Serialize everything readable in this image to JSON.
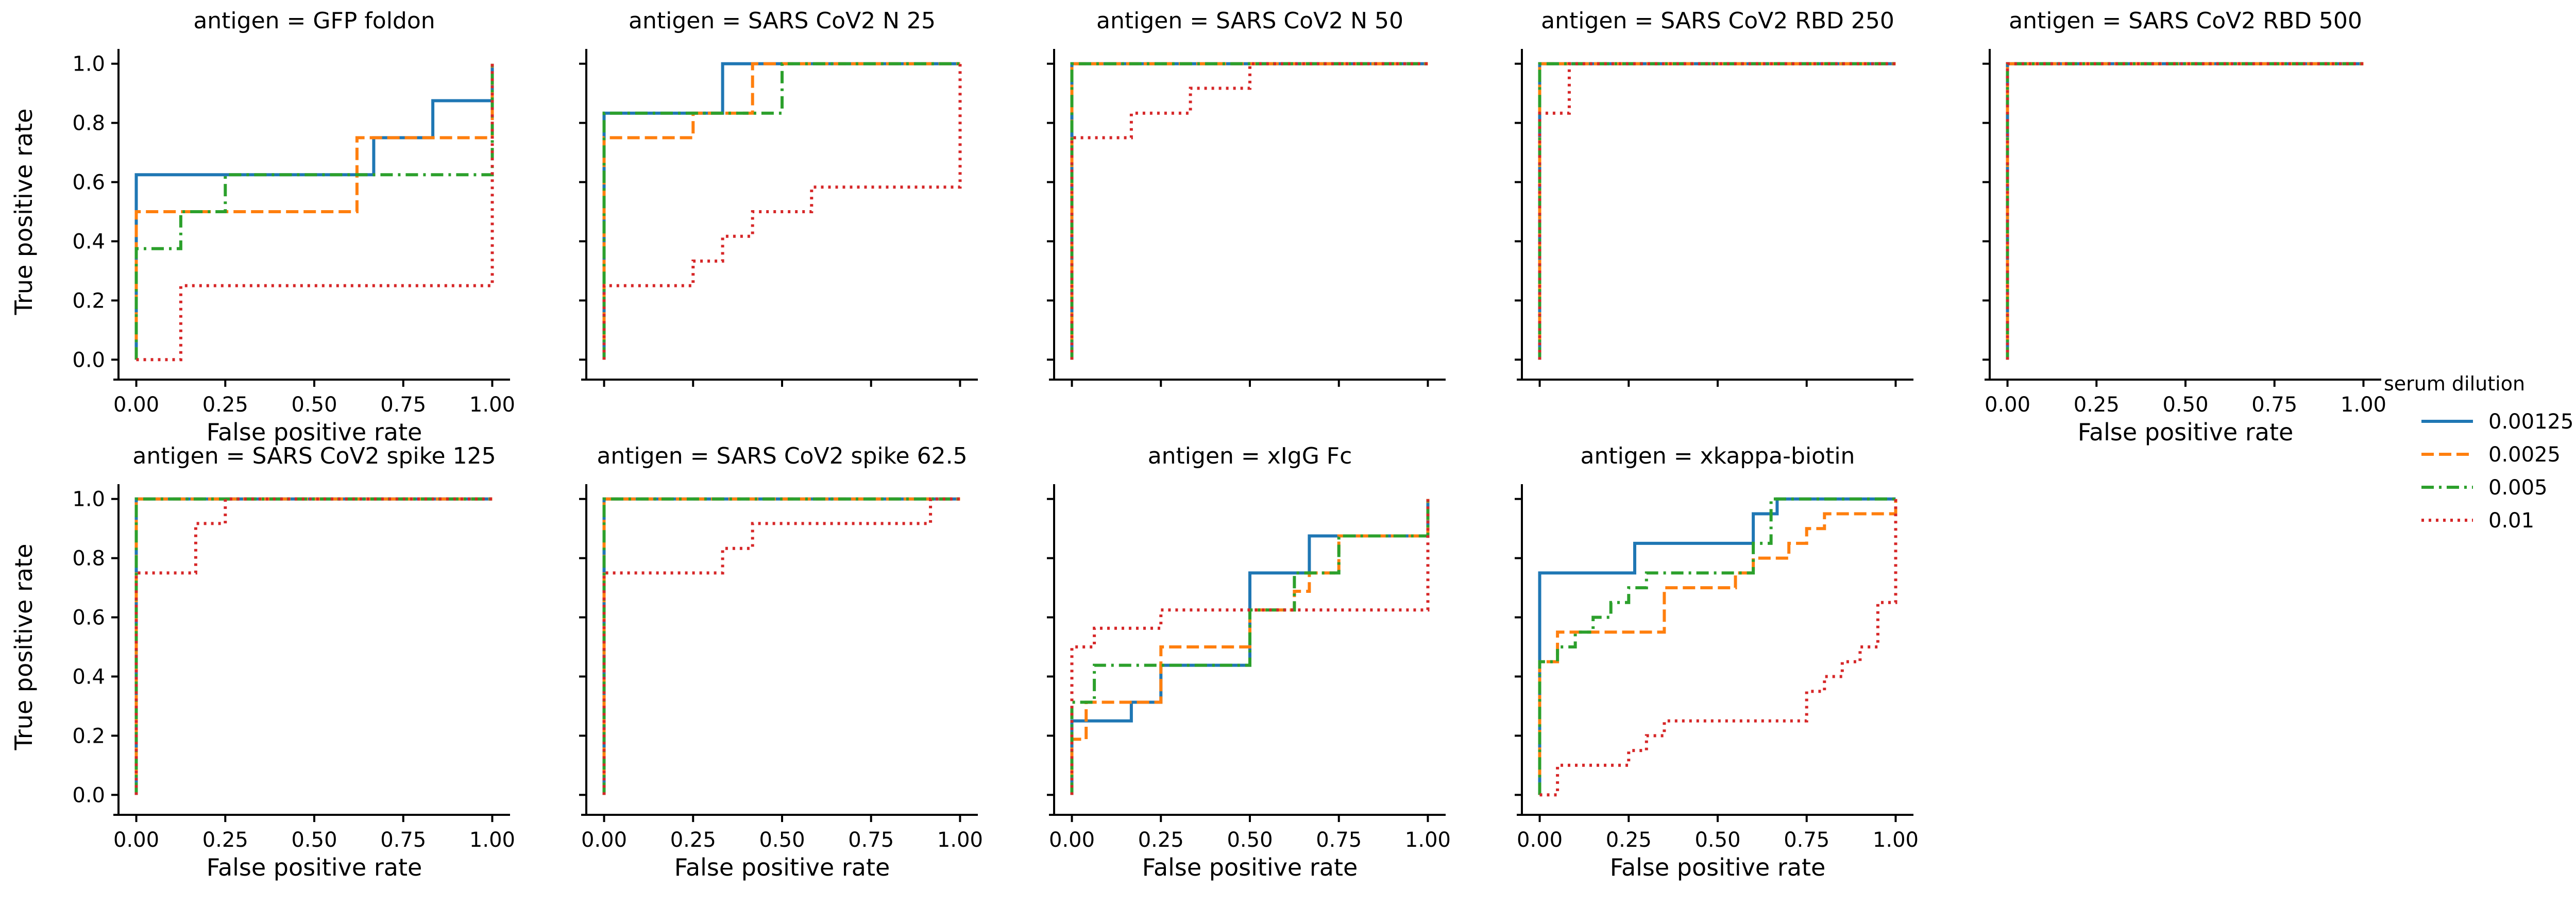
{
  "chart_data": {
    "type": "line",
    "xlabel": "False positive rate",
    "ylabel": "True positive rate",
    "xlim": [
      -0.05,
      1.05
    ],
    "ylim": [
      -0.05,
      1.05
    ],
    "xticks": [
      "0.00",
      "0.25",
      "0.50",
      "0.75",
      "1.00"
    ],
    "yticks": [
      "0.0",
      "0.2",
      "0.4",
      "0.6",
      "0.8",
      "1.0"
    ],
    "grid": false,
    "legend": {
      "title": "serum dilution",
      "placement": "right",
      "entries": [
        {
          "name": "0.00125",
          "color": "#1f77b4",
          "dash": "solid"
        },
        {
          "name": "0.0025",
          "color": "#ff7f0e",
          "dash": "dashed"
        },
        {
          "name": "0.005",
          "color": "#2ca02c",
          "dash": "dashdot"
        },
        {
          "name": "0.01",
          "color": "#d62728",
          "dash": "dotted"
        }
      ]
    },
    "panels": [
      {
        "title": "antigen = GFP foldon",
        "series": [
          {
            "name": "0.00125",
            "x": [
              0,
              0,
              0.667,
              0.667,
              0.833,
              0.833,
              1,
              1
            ],
            "y": [
              0,
              0.625,
              0.625,
              0.75,
              0.75,
              0.875,
              0.875,
              1
            ]
          },
          {
            "name": "0.0025",
            "x": [
              0,
              0,
              0.62,
              0.62,
              1,
              1
            ],
            "y": [
              0,
              0.5,
              0.5,
              0.75,
              0.75,
              1
            ]
          },
          {
            "name": "0.005",
            "x": [
              0,
              0,
              0.125,
              0.125,
              0.25,
              0.25,
              1,
              1
            ],
            "y": [
              0,
              0.375,
              0.375,
              0.5,
              0.5,
              0.625,
              0.625,
              1
            ]
          },
          {
            "name": "0.01",
            "x": [
              0,
              0,
              0.125,
              0.125,
              1,
              1
            ],
            "y": [
              0,
              0,
              0,
              0.25,
              0.25,
              1
            ]
          }
        ]
      },
      {
        "title": "antigen = SARS CoV2 N 25",
        "series": [
          {
            "name": "0.00125",
            "x": [
              0,
              0,
              0.333,
              0.333,
              1
            ],
            "y": [
              0,
              0.833,
              0.833,
              1,
              1
            ]
          },
          {
            "name": "0.0025",
            "x": [
              0,
              0,
              0.25,
              0.25,
              0.417,
              0.417,
              1
            ],
            "y": [
              0,
              0.75,
              0.75,
              0.833,
              0.833,
              1,
              1
            ]
          },
          {
            "name": "0.005",
            "x": [
              0,
              0,
              0.5,
              0.5,
              1
            ],
            "y": [
              0,
              0.833,
              0.833,
              1,
              1
            ]
          },
          {
            "name": "0.01",
            "x": [
              0,
              0,
              0.25,
              0.25,
              0.333,
              0.333,
              0.417,
              0.417,
              0.583,
              0.583,
              1,
              1
            ],
            "y": [
              0,
              0.25,
              0.25,
              0.333,
              0.333,
              0.417,
              0.417,
              0.5,
              0.5,
              0.583,
              0.583,
              1
            ]
          }
        ]
      },
      {
        "title": "antigen = SARS CoV2 N 50",
        "series": [
          {
            "name": "0.00125",
            "x": [
              0,
              0,
              1
            ],
            "y": [
              0,
              1,
              1
            ]
          },
          {
            "name": "0.0025",
            "x": [
              0,
              0,
              1
            ],
            "y": [
              0,
              1,
              1
            ]
          },
          {
            "name": "0.005",
            "x": [
              0,
              0,
              1
            ],
            "y": [
              0,
              1,
              1
            ]
          },
          {
            "name": "0.01",
            "x": [
              0,
              0,
              0.167,
              0.167,
              0.333,
              0.333,
              0.5,
              0.5,
              1
            ],
            "y": [
              0,
              0.75,
              0.75,
              0.833,
              0.833,
              0.917,
              0.917,
              1,
              1
            ]
          }
        ]
      },
      {
        "title": "antigen = SARS CoV2 RBD 250",
        "series": [
          {
            "name": "0.00125",
            "x": [
              0,
              0,
              1
            ],
            "y": [
              0,
              1,
              1
            ]
          },
          {
            "name": "0.0025",
            "x": [
              0,
              0,
              1
            ],
            "y": [
              0,
              1,
              1
            ]
          },
          {
            "name": "0.005",
            "x": [
              0,
              0,
              1
            ],
            "y": [
              0,
              1,
              1
            ]
          },
          {
            "name": "0.01",
            "x": [
              0,
              0,
              0.083,
              0.083,
              1
            ],
            "y": [
              0,
              0.833,
              0.833,
              1,
              1
            ]
          }
        ]
      },
      {
        "title": "antigen = SARS CoV2 RBD 500",
        "series": [
          {
            "name": "0.00125",
            "x": [
              0,
              0,
              1
            ],
            "y": [
              0,
              1,
              1
            ]
          },
          {
            "name": "0.0025",
            "x": [
              0,
              0,
              1
            ],
            "y": [
              0,
              1,
              1
            ]
          },
          {
            "name": "0.005",
            "x": [
              0,
              0,
              1
            ],
            "y": [
              0,
              1,
              1
            ]
          },
          {
            "name": "0.01",
            "x": [
              0,
              0,
              1
            ],
            "y": [
              0,
              1,
              1
            ]
          }
        ]
      },
      {
        "title": "antigen = SARS CoV2 spike 125",
        "series": [
          {
            "name": "0.00125",
            "x": [
              0,
              0,
              1
            ],
            "y": [
              0,
              1,
              1
            ]
          },
          {
            "name": "0.0025",
            "x": [
              0,
              0,
              1
            ],
            "y": [
              0,
              1,
              1
            ]
          },
          {
            "name": "0.005",
            "x": [
              0,
              0,
              1
            ],
            "y": [
              0,
              1,
              1
            ]
          },
          {
            "name": "0.01",
            "x": [
              0,
              0,
              0.167,
              0.167,
              0.25,
              0.25,
              1
            ],
            "y": [
              0,
              0.75,
              0.75,
              0.917,
              0.917,
              1,
              1
            ]
          }
        ]
      },
      {
        "title": "antigen = SARS CoV2 spike 62.5",
        "series": [
          {
            "name": "0.00125",
            "x": [
              0,
              0,
              1
            ],
            "y": [
              0,
              1,
              1
            ]
          },
          {
            "name": "0.0025",
            "x": [
              0,
              0,
              1
            ],
            "y": [
              0,
              1,
              1
            ]
          },
          {
            "name": "0.005",
            "x": [
              0,
              0,
              1
            ],
            "y": [
              0,
              1,
              1
            ]
          },
          {
            "name": "0.01",
            "x": [
              0,
              0,
              0.333,
              0.333,
              0.417,
              0.417,
              0.917,
              0.917,
              1
            ],
            "y": [
              0,
              0.75,
              0.75,
              0.833,
              0.833,
              0.917,
              0.917,
              1,
              1
            ]
          }
        ]
      },
      {
        "title": "antigen = xIgG Fc",
        "series": [
          {
            "name": "0.00125",
            "x": [
              0,
              0,
              0.167,
              0.167,
              0.25,
              0.25,
              0.5,
              0.5,
              0.667,
              0.667,
              1,
              1
            ],
            "y": [
              0,
              0.25,
              0.25,
              0.313,
              0.313,
              0.438,
              0.438,
              0.75,
              0.75,
              0.875,
              0.875,
              1
            ]
          },
          {
            "name": "0.0025",
            "x": [
              0,
              0,
              0.04,
              0.04,
              0.25,
              0.25,
              0.5,
              0.5,
              0.625,
              0.625,
              0.667,
              0.667,
              0.75,
              0.75,
              1,
              1
            ],
            "y": [
              0,
              0.188,
              0.188,
              0.313,
              0.313,
              0.5,
              0.5,
              0.625,
              0.625,
              0.688,
              0.688,
              0.75,
              0.75,
              0.875,
              0.875,
              1
            ]
          },
          {
            "name": "0.005",
            "x": [
              0,
              0,
              0.063,
              0.063,
              0.25,
              0.25,
              0.5,
              0.5,
              0.625,
              0.625,
              0.75,
              0.75,
              1,
              1
            ],
            "y": [
              0,
              0.313,
              0.313,
              0.438,
              0.438,
              0.438,
              0.438,
              0.625,
              0.625,
              0.75,
              0.75,
              0.875,
              0.875,
              1
            ]
          },
          {
            "name": "0.01",
            "x": [
              0,
              0,
              0.063,
              0.063,
              0.25,
              0.25,
              1,
              1
            ],
            "y": [
              0,
              0.5,
              0.5,
              0.563,
              0.563,
              0.625,
              0.625,
              1
            ]
          }
        ]
      },
      {
        "title": "antigen = xkappa-biotin",
        "series": [
          {
            "name": "0.00125",
            "x": [
              0,
              0,
              0.267,
              0.267,
              0.6,
              0.6,
              0.667,
              0.667,
              1
            ],
            "y": [
              0,
              0.75,
              0.75,
              0.85,
              0.85,
              0.95,
              0.95,
              1,
              1
            ]
          },
          {
            "name": "0.0025",
            "x": [
              0,
              0,
              0.05,
              0.05,
              0.1,
              0.1,
              0.35,
              0.35,
              0.55,
              0.55,
              0.6,
              0.6,
              0.7,
              0.7,
              0.75,
              0.75,
              0.8,
              0.8,
              0.85,
              0.85,
              1,
              1
            ],
            "y": [
              0,
              0.45,
              0.45,
              0.55,
              0.55,
              0.55,
              0.55,
              0.7,
              0.7,
              0.75,
              0.75,
              0.8,
              0.8,
              0.85,
              0.85,
              0.9,
              0.9,
              0.95,
              0.95,
              0.95,
              0.95,
              1
            ]
          },
          {
            "name": "0.005",
            "x": [
              0,
              0,
              0.05,
              0.05,
              0.1,
              0.1,
              0.15,
              0.15,
              0.2,
              0.2,
              0.25,
              0.25,
              0.3,
              0.3,
              0.6,
              0.6,
              0.65,
              0.65,
              1
            ],
            "y": [
              0,
              0.45,
              0.45,
              0.5,
              0.5,
              0.55,
              0.55,
              0.6,
              0.6,
              0.65,
              0.65,
              0.7,
              0.7,
              0.75,
              0.75,
              0.85,
              0.85,
              1,
              1
            ]
          },
          {
            "name": "0.01",
            "x": [
              0,
              0,
              0.05,
              0.05,
              0.25,
              0.25,
              0.3,
              0.3,
              0.35,
              0.35,
              0.75,
              0.75,
              0.8,
              0.8,
              0.85,
              0.85,
              0.9,
              0.9,
              0.95,
              0.95,
              1,
              1
            ],
            "y": [
              0,
              0,
              0,
              0.1,
              0.1,
              0.15,
              0.15,
              0.2,
              0.2,
              0.25,
              0.25,
              0.35,
              0.35,
              0.4,
              0.4,
              0.45,
              0.45,
              0.5,
              0.5,
              0.65,
              0.65,
              1
            ]
          }
        ]
      }
    ]
  }
}
